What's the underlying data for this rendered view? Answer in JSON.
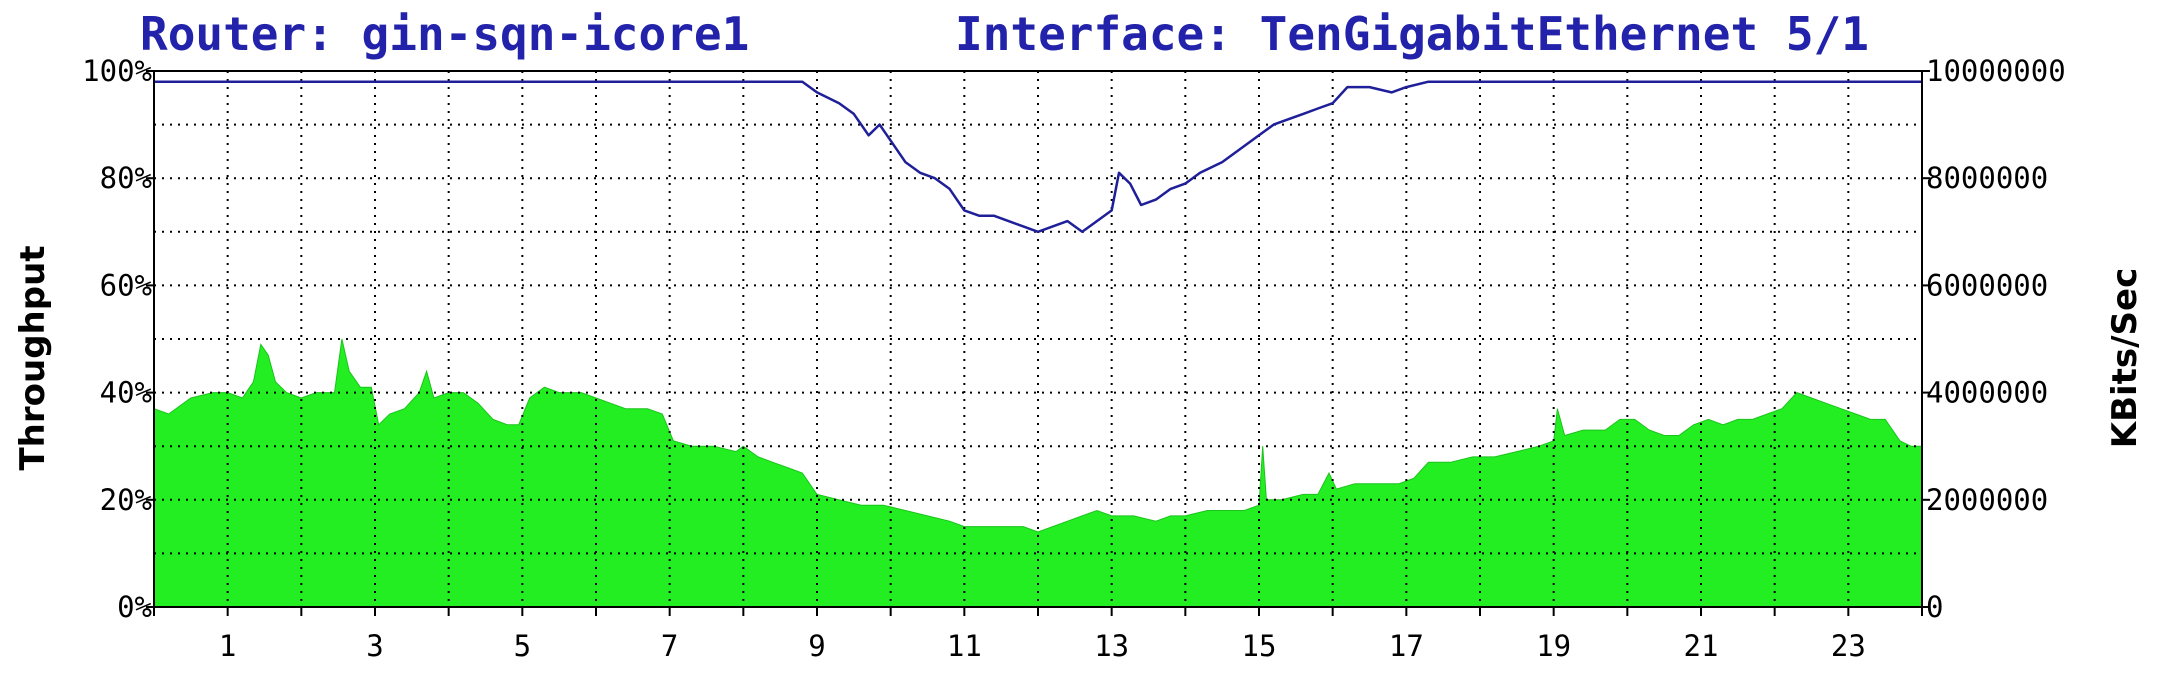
{
  "colors": {
    "background": "#ffffff",
    "title": "#2222aa",
    "area_fill": "#22ee22",
    "area_edge": "#1bc41b",
    "line": "#1f1f99",
    "grid": "#000000",
    "axis": "#000000"
  },
  "title": {
    "router": "Router: gin-sqn-icore1",
    "interface": "Interface: TenGigabitEthernet 5/1"
  },
  "chart_data": {
    "type": "area",
    "title": "Router: gin-sqn-icore1    Interface: TenGigabitEthernet 5/1",
    "xlabel": "",
    "ylabel": "Throughput",
    "ylabel_right": "KBits/Sec",
    "xlim": [
      0,
      24
    ],
    "ylim": [
      0,
      100
    ],
    "ylim_right": [
      0,
      10000000
    ],
    "x_tick_labels": [
      "1",
      "3",
      "5",
      "7",
      "9",
      "11",
      "13",
      "15",
      "17",
      "19",
      "21",
      "23"
    ],
    "y_tick_labels_left": [
      "0%",
      "20%",
      "40%",
      "60%",
      "80%",
      "100%"
    ],
    "y_tick_labels_right": [
      "0",
      "2000000",
      "4000000",
      "6000000",
      "8000000",
      "10000000"
    ],
    "grid": true,
    "grid_style": "dotted",
    "series": [
      {
        "kind": "area",
        "points": [
          [
            0.0,
            37
          ],
          [
            0.2,
            36
          ],
          [
            0.5,
            39
          ],
          [
            0.8,
            40
          ],
          [
            1.0,
            40
          ],
          [
            1.2,
            39
          ],
          [
            1.35,
            42
          ],
          [
            1.45,
            49
          ],
          [
            1.55,
            47
          ],
          [
            1.65,
            42
          ],
          [
            1.8,
            40
          ],
          [
            2.0,
            39
          ],
          [
            2.2,
            40
          ],
          [
            2.45,
            40
          ],
          [
            2.55,
            50
          ],
          [
            2.65,
            44
          ],
          [
            2.8,
            41
          ],
          [
            2.95,
            41
          ],
          [
            3.05,
            34
          ],
          [
            3.2,
            36
          ],
          [
            3.4,
            37
          ],
          [
            3.6,
            40
          ],
          [
            3.7,
            44
          ],
          [
            3.8,
            39
          ],
          [
            4.0,
            40
          ],
          [
            4.2,
            40
          ],
          [
            4.4,
            38
          ],
          [
            4.6,
            35
          ],
          [
            4.8,
            34
          ],
          [
            4.95,
            34
          ],
          [
            5.1,
            39
          ],
          [
            5.3,
            41
          ],
          [
            5.5,
            40
          ],
          [
            5.8,
            40
          ],
          [
            6.0,
            39
          ],
          [
            6.2,
            38
          ],
          [
            6.4,
            37
          ],
          [
            6.7,
            37
          ],
          [
            6.9,
            36
          ],
          [
            7.05,
            31
          ],
          [
            7.3,
            30
          ],
          [
            7.6,
            30
          ],
          [
            7.9,
            29
          ],
          [
            8.0,
            30
          ],
          [
            8.2,
            28
          ],
          [
            8.4,
            27
          ],
          [
            8.6,
            26
          ],
          [
            8.8,
            25
          ],
          [
            9.0,
            21
          ],
          [
            9.3,
            20
          ],
          [
            9.6,
            19
          ],
          [
            9.9,
            19
          ],
          [
            10.2,
            18
          ],
          [
            10.5,
            17
          ],
          [
            10.8,
            16
          ],
          [
            11.0,
            15
          ],
          [
            11.2,
            15
          ],
          [
            11.5,
            15
          ],
          [
            11.8,
            15
          ],
          [
            12.0,
            14
          ],
          [
            12.2,
            15
          ],
          [
            12.4,
            16
          ],
          [
            12.6,
            17
          ],
          [
            12.8,
            18
          ],
          [
            13.0,
            17
          ],
          [
            13.3,
            17
          ],
          [
            13.6,
            16
          ],
          [
            13.8,
            17
          ],
          [
            14.0,
            17
          ],
          [
            14.3,
            18
          ],
          [
            14.6,
            18
          ],
          [
            14.8,
            18
          ],
          [
            15.0,
            19
          ],
          [
            15.05,
            30
          ],
          [
            15.1,
            20
          ],
          [
            15.3,
            20
          ],
          [
            15.6,
            21
          ],
          [
            15.8,
            21
          ],
          [
            15.95,
            25
          ],
          [
            16.05,
            22
          ],
          [
            16.3,
            23
          ],
          [
            16.6,
            23
          ],
          [
            16.9,
            23
          ],
          [
            17.1,
            24
          ],
          [
            17.3,
            27
          ],
          [
            17.6,
            27
          ],
          [
            17.9,
            28
          ],
          [
            18.2,
            28
          ],
          [
            18.5,
            29
          ],
          [
            18.8,
            30
          ],
          [
            19.0,
            31
          ],
          [
            19.05,
            37
          ],
          [
            19.15,
            32
          ],
          [
            19.4,
            33
          ],
          [
            19.7,
            33
          ],
          [
            19.9,
            35
          ],
          [
            20.1,
            35
          ],
          [
            20.3,
            33
          ],
          [
            20.5,
            32
          ],
          [
            20.7,
            32
          ],
          [
            20.9,
            34
          ],
          [
            21.1,
            35
          ],
          [
            21.3,
            34
          ],
          [
            21.5,
            35
          ],
          [
            21.7,
            35
          ],
          [
            21.9,
            36
          ],
          [
            22.1,
            37
          ],
          [
            22.3,
            40
          ],
          [
            22.5,
            39
          ],
          [
            22.7,
            38
          ],
          [
            22.9,
            37
          ],
          [
            23.1,
            36
          ],
          [
            23.3,
            35
          ],
          [
            23.5,
            35
          ],
          [
            23.7,
            31
          ],
          [
            23.85,
            30
          ],
          [
            24.0,
            30
          ]
        ]
      },
      {
        "kind": "line",
        "points": [
          [
            0.0,
            98
          ],
          [
            0.5,
            98
          ],
          [
            1.0,
            98
          ],
          [
            1.5,
            98
          ],
          [
            2.0,
            98
          ],
          [
            2.5,
            98
          ],
          [
            3.0,
            98
          ],
          [
            3.5,
            98
          ],
          [
            4.0,
            98
          ],
          [
            4.5,
            98
          ],
          [
            5.0,
            98
          ],
          [
            5.5,
            98
          ],
          [
            6.0,
            98
          ],
          [
            6.5,
            98
          ],
          [
            7.0,
            98
          ],
          [
            7.5,
            98
          ],
          [
            8.0,
            98
          ],
          [
            8.5,
            98
          ],
          [
            8.8,
            98
          ],
          [
            9.0,
            96
          ],
          [
            9.3,
            94
          ],
          [
            9.5,
            92
          ],
          [
            9.7,
            88
          ],
          [
            9.85,
            90
          ],
          [
            10.0,
            87
          ],
          [
            10.2,
            83
          ],
          [
            10.4,
            81
          ],
          [
            10.6,
            80
          ],
          [
            10.8,
            78
          ],
          [
            11.0,
            74
          ],
          [
            11.2,
            73
          ],
          [
            11.4,
            73
          ],
          [
            11.6,
            72
          ],
          [
            11.8,
            71
          ],
          [
            12.0,
            70
          ],
          [
            12.2,
            71
          ],
          [
            12.4,
            72
          ],
          [
            12.6,
            70
          ],
          [
            12.8,
            72
          ],
          [
            13.0,
            74
          ],
          [
            13.1,
            81
          ],
          [
            13.25,
            79
          ],
          [
            13.4,
            75
          ],
          [
            13.6,
            76
          ],
          [
            13.8,
            78
          ],
          [
            14.0,
            79
          ],
          [
            14.2,
            81
          ],
          [
            14.5,
            83
          ],
          [
            14.8,
            86
          ],
          [
            15.0,
            88
          ],
          [
            15.2,
            90
          ],
          [
            15.4,
            91
          ],
          [
            15.6,
            92
          ],
          [
            15.8,
            93
          ],
          [
            16.0,
            94
          ],
          [
            16.2,
            97
          ],
          [
            16.5,
            97
          ],
          [
            16.8,
            96
          ],
          [
            17.0,
            97
          ],
          [
            17.3,
            98
          ],
          [
            17.6,
            98
          ],
          [
            18.0,
            98
          ],
          [
            18.5,
            98
          ],
          [
            19.0,
            98
          ],
          [
            19.5,
            98
          ],
          [
            20.0,
            98
          ],
          [
            20.5,
            98
          ],
          [
            21.0,
            98
          ],
          [
            21.5,
            98
          ],
          [
            22.0,
            98
          ],
          [
            22.5,
            98
          ],
          [
            23.0,
            98
          ],
          [
            23.5,
            98
          ],
          [
            24.0,
            98
          ]
        ]
      }
    ]
  }
}
